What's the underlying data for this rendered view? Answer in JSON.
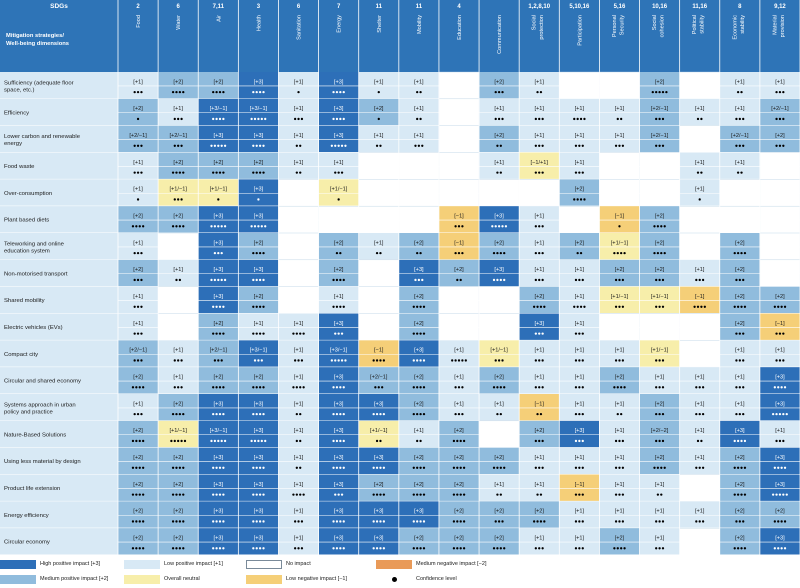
{
  "table": {
    "sdg_header": "SDGs",
    "title_line1": "Mitigation strategies/",
    "title_line2": "Well-being dimensions",
    "sdgs": [
      "2",
      "6",
      "7,11",
      "3",
      "6",
      "7",
      "11",
      "11",
      "4",
      "",
      "1,2,8,10",
      "5,10,16",
      "5,16",
      "10,16",
      "11,16",
      "8",
      "9,12"
    ],
    "dimensions": [
      "Food",
      "Water",
      "Air",
      "Health",
      "Sanitation",
      "Energy",
      "Shelter",
      "Mobility",
      "Education",
      "Communication",
      "Social protection",
      "Participation",
      "Personal Security",
      "Social cohesion",
      "Political stability",
      "Economic stability",
      "Material provision"
    ],
    "cell_legend": "Each cell: [impact level, confidence dots]; impact codes: H=[+3] high positive, M=[+2] medium positive, L=[+1] low positive, O=[+1/-1] overall neutral, N=[-1] low negative, D=[-2] medium negative, blank=no impact",
    "rows": [
      {
        "label": "Sufficiency (adequate floor space, etc.)",
        "cells": [
          [
            "+1",
            3
          ],
          [
            "+2",
            4
          ],
          [
            "+2",
            4
          ],
          [
            "+3",
            4
          ],
          [
            "+1",
            1
          ],
          [
            "+3",
            4
          ],
          [
            "+1",
            1
          ],
          [
            "+1",
            2
          ],
          null,
          [
            "+2",
            3
          ],
          [
            "+1",
            2
          ],
          null,
          null,
          [
            "+2",
            5
          ],
          null,
          [
            "+1",
            2
          ],
          [
            "+1",
            3
          ]
        ]
      },
      {
        "label": "Efficiency",
        "cells": [
          [
            "+2",
            1
          ],
          [
            "+1",
            3
          ],
          [
            "+3/-1",
            4
          ],
          [
            "+3/-1",
            5
          ],
          [
            "+1",
            3
          ],
          [
            "+3",
            4
          ],
          [
            "+2",
            1
          ],
          [
            "+1",
            2
          ],
          null,
          [
            "+1",
            3
          ],
          [
            "+1",
            3
          ],
          [
            "+1",
            4
          ],
          [
            "+1",
            2
          ],
          [
            "+2/-1",
            3
          ],
          [
            "+1",
            2
          ],
          [
            "+1",
            3
          ],
          [
            "+2/-1",
            3
          ]
        ]
      },
      {
        "label": "Lower carbon and renewable energy",
        "cells": [
          [
            "+2/-1",
            3
          ],
          [
            "+2/-1",
            3
          ],
          [
            "+3",
            5
          ],
          [
            "+3",
            4
          ],
          [
            "+1",
            2
          ],
          [
            "+3",
            5
          ],
          [
            "+1",
            2
          ],
          [
            "+1",
            3
          ],
          null,
          [
            "+2",
            2
          ],
          [
            "+1",
            3
          ],
          [
            "+1",
            3
          ],
          [
            "+1",
            3
          ],
          [
            "+2/-1",
            3
          ],
          null,
          [
            "+2/-1",
            3
          ],
          [
            "+2",
            3
          ]
        ]
      },
      {
        "label": "Food waste",
        "cells": [
          [
            "+1",
            3
          ],
          [
            "+2",
            4
          ],
          [
            "+2",
            4
          ],
          [
            "+2",
            4
          ],
          [
            "+1",
            2
          ],
          [
            "+1",
            3
          ],
          null,
          null,
          null,
          [
            "+1",
            2
          ],
          [
            "-1/+1",
            3
          ],
          [
            "+1",
            3
          ],
          null,
          null,
          [
            "+1",
            2
          ],
          [
            "+1",
            2
          ],
          null
        ]
      },
      {
        "label": "Over-consumption",
        "cells": [
          [
            "+1",
            1
          ],
          [
            "+1/-1",
            3
          ],
          [
            "+1/-1",
            1
          ],
          [
            "+3",
            1
          ],
          null,
          [
            "+1/-1",
            1
          ],
          null,
          null,
          null,
          null,
          null,
          [
            "+2",
            4
          ],
          null,
          null,
          [
            "+1",
            1
          ],
          null,
          null
        ]
      },
      {
        "label": "Plant based diets",
        "cells": [
          [
            "+2",
            4
          ],
          [
            "+2",
            4
          ],
          [
            "+3",
            5
          ],
          [
            "+3",
            5
          ],
          null,
          null,
          null,
          null,
          [
            "-1",
            3
          ],
          [
            "+3",
            5
          ],
          [
            "+1",
            3
          ],
          null,
          [
            "-1",
            1
          ],
          [
            "+2",
            4
          ],
          null,
          null,
          null
        ]
      },
      {
        "label": "Teleworking and online education system",
        "cells": [
          [
            "+1",
            3
          ],
          null,
          [
            "+3",
            3
          ],
          [
            "+2",
            4
          ],
          null,
          [
            "+2",
            2
          ],
          [
            "+1",
            2
          ],
          [
            "+2",
            2
          ],
          [
            "-1",
            3
          ],
          [
            "+2",
            4
          ],
          [
            "+1",
            3
          ],
          [
            "+2",
            2
          ],
          [
            "+1/-1",
            4
          ],
          [
            "+2",
            4
          ],
          null,
          [
            "+2",
            4
          ],
          null
        ]
      },
      {
        "label": "Non-motorised transport",
        "cells": [
          [
            "+2",
            3
          ],
          [
            "+1",
            2
          ],
          [
            "+3",
            5
          ],
          [
            "+3",
            4
          ],
          null,
          [
            "+2",
            4
          ],
          null,
          [
            "+3",
            3
          ],
          [
            "+2",
            2
          ],
          [
            "+3",
            4
          ],
          [
            "+1",
            3
          ],
          [
            "+1",
            3
          ],
          [
            "+2",
            3
          ],
          [
            "+2",
            3
          ],
          [
            "+1",
            3
          ],
          [
            "+2",
            3
          ],
          null
        ]
      },
      {
        "label": "Shared mobility",
        "cells": [
          [
            "+1",
            3
          ],
          null,
          [
            "+3",
            4
          ],
          [
            "+2",
            4
          ],
          null,
          [
            "+1",
            4
          ],
          null,
          [
            "+2",
            4
          ],
          null,
          null,
          [
            "+2",
            4
          ],
          [
            "+1",
            4
          ],
          [
            "+1/-1",
            3
          ],
          [
            "+1/-1",
            3
          ],
          [
            "-1",
            4
          ],
          [
            "+2",
            4
          ],
          [
            "+2",
            4
          ]
        ]
      },
      {
        "label": "Electric vehicles (EVs)",
        "cells": [
          [
            "+1",
            3
          ],
          null,
          [
            "+2",
            4
          ],
          [
            "+1",
            4
          ],
          [
            "+1",
            4
          ],
          [
            "+3",
            3
          ],
          null,
          [
            "+2",
            4
          ],
          null,
          null,
          [
            "+3",
            3
          ],
          [
            "+1",
            3
          ],
          null,
          null,
          null,
          [
            "+2",
            3
          ],
          [
            "-1",
            3
          ]
        ]
      },
      {
        "label": "Compact city",
        "cells": [
          [
            "+2/-1",
            3
          ],
          [
            "+1",
            3
          ],
          [
            "+2/-1",
            3
          ],
          [
            "+3/-1",
            3
          ],
          [
            "+1",
            3
          ],
          [
            "+3/-1",
            5
          ],
          [
            "-1",
            4
          ],
          [
            "+3",
            4
          ],
          [
            "+1",
            5
          ],
          [
            "+1/-1",
            3
          ],
          [
            "+1",
            3
          ],
          [
            "+1",
            3
          ],
          [
            "+1",
            3
          ],
          [
            "+1/-1",
            3
          ],
          null,
          [
            "+1",
            3
          ],
          [
            "+1",
            3
          ]
        ]
      },
      {
        "label": "Circular and shared economy",
        "cells": [
          [
            "+2",
            4
          ],
          [
            "+1",
            3
          ],
          [
            "+2",
            4
          ],
          [
            "+2",
            4
          ],
          [
            "+1",
            4
          ],
          [
            "+3",
            4
          ],
          [
            "+2/-1",
            3
          ],
          [
            "+2",
            4
          ],
          [
            "+1",
            3
          ],
          [
            "+2",
            4
          ],
          [
            "+1",
            3
          ],
          [
            "+1",
            3
          ],
          [
            "+2",
            4
          ],
          [
            "+1",
            3
          ],
          [
            "+1",
            3
          ],
          [
            "+1",
            3
          ],
          [
            "+3",
            4
          ]
        ]
      },
      {
        "label": "Systems approach in urban policy and practice",
        "cells": [
          [
            "+1",
            3
          ],
          [
            "+2",
            4
          ],
          [
            "+3",
            4
          ],
          [
            "+3",
            4
          ],
          [
            "+1",
            2
          ],
          [
            "+3",
            4
          ],
          [
            "+3",
            4
          ],
          [
            "+2",
            4
          ],
          [
            "+1",
            3
          ],
          [
            "+1",
            2
          ],
          [
            "-1",
            2
          ],
          [
            "+1",
            3
          ],
          [
            "+1",
            2
          ],
          [
            "+2",
            3
          ],
          [
            "+1",
            3
          ],
          [
            "+1",
            3
          ],
          [
            "+3",
            5
          ]
        ]
      },
      {
        "label": "Nature-Based Solutions",
        "cells": [
          [
            "+2",
            4
          ],
          [
            "+1/-1",
            5
          ],
          [
            "+3/-1",
            5
          ],
          [
            "+3",
            5
          ],
          [
            "+1",
            2
          ],
          [
            "+3",
            4
          ],
          [
            "+1/-1",
            2
          ],
          [
            "+1",
            2
          ],
          [
            "+2",
            4
          ],
          null,
          [
            "+2",
            3
          ],
          [
            "+3",
            3
          ],
          [
            "+1",
            3
          ],
          [
            "+2/-2",
            3
          ],
          [
            "+1",
            2
          ],
          [
            "+3",
            4
          ],
          [
            "+1",
            3
          ]
        ]
      },
      {
        "label": "Using less material by design",
        "cells": [
          [
            "+2",
            4
          ],
          [
            "+2",
            4
          ],
          [
            "+3",
            4
          ],
          [
            "+3",
            4
          ],
          [
            "+1",
            2
          ],
          [
            "+3",
            4
          ],
          [
            "+3",
            4
          ],
          [
            "+2",
            4
          ],
          [
            "+2",
            4
          ],
          [
            "+2",
            4
          ],
          [
            "+1",
            3
          ],
          [
            "+1",
            3
          ],
          [
            "+1",
            3
          ],
          [
            "+2",
            4
          ],
          [
            "+1",
            3
          ],
          [
            "+2",
            4
          ],
          [
            "+3",
            4
          ]
        ]
      },
      {
        "label": "Product life extension",
        "cells": [
          [
            "+2",
            4
          ],
          [
            "+2",
            4
          ],
          [
            "+3",
            4
          ],
          [
            "+3",
            4
          ],
          [
            "+1",
            4
          ],
          [
            "+3",
            3
          ],
          [
            "+2",
            4
          ],
          [
            "+2",
            4
          ],
          [
            "+2",
            4
          ],
          [
            "+1",
            2
          ],
          [
            "+1",
            2
          ],
          [
            "-1",
            3
          ],
          [
            "+1",
            3
          ],
          [
            "+1",
            2
          ],
          null,
          [
            "+2",
            4
          ],
          [
            "+3",
            5
          ]
        ]
      },
      {
        "label": "Energy efficiency",
        "cells": [
          [
            "+2",
            4
          ],
          [
            "+2",
            4
          ],
          [
            "+3",
            4
          ],
          [
            "+3",
            4
          ],
          [
            "+1",
            3
          ],
          [
            "+3",
            4
          ],
          [
            "+3",
            4
          ],
          [
            "+3",
            4
          ],
          [
            "+2",
            4
          ],
          [
            "+2",
            3
          ],
          [
            "+2",
            4
          ],
          [
            "+1",
            3
          ],
          [
            "+1",
            3
          ],
          [
            "+1",
            3
          ],
          [
            "+1",
            3
          ],
          [
            "+2",
            3
          ],
          [
            "+2",
            4
          ]
        ]
      },
      {
        "label": "Circular economy",
        "cells": [
          [
            "+2",
            4
          ],
          [
            "+2",
            4
          ],
          [
            "+3",
            4
          ],
          [
            "+3",
            4
          ],
          [
            "+1",
            3
          ],
          [
            "+3",
            4
          ],
          [
            "+3",
            4
          ],
          [
            "+2",
            4
          ],
          [
            "+2",
            4
          ],
          [
            "+2",
            4
          ],
          [
            "+1",
            3
          ],
          [
            "+1",
            3
          ],
          [
            "+2",
            4
          ],
          [
            "+1",
            3
          ],
          null,
          [
            "+2",
            4
          ],
          [
            "+3",
            4
          ]
        ]
      }
    ]
  },
  "colors": {
    "header_band": "#2e74b7",
    "high": "#2d6fb8",
    "medium": "#90bcdd",
    "low": "#d8e9f5",
    "neutral": "#f7eeaa",
    "neg_low": "#f5cf78",
    "neg_med": "#e99a58",
    "none": "#ffffff",
    "gridline": "#ffffff",
    "text": "#1a1a1a"
  },
  "legend": {
    "items": [
      {
        "key": "high",
        "label": "High positive impact [+3]"
      },
      {
        "key": "medium",
        "label": "Medium positive impact [+2]"
      },
      {
        "key": "low",
        "label": "Low positive impact [+1]"
      },
      {
        "key": "neutral",
        "label": "Overall neutral"
      },
      {
        "key": "none",
        "label": "No impact"
      },
      {
        "key": "neg_low",
        "label": "Low negative impact [−1]"
      },
      {
        "key": "neg_med",
        "label": "Medium negative impact [−2]"
      },
      {
        "key": "dot",
        "label": "Confidence level"
      }
    ]
  }
}
